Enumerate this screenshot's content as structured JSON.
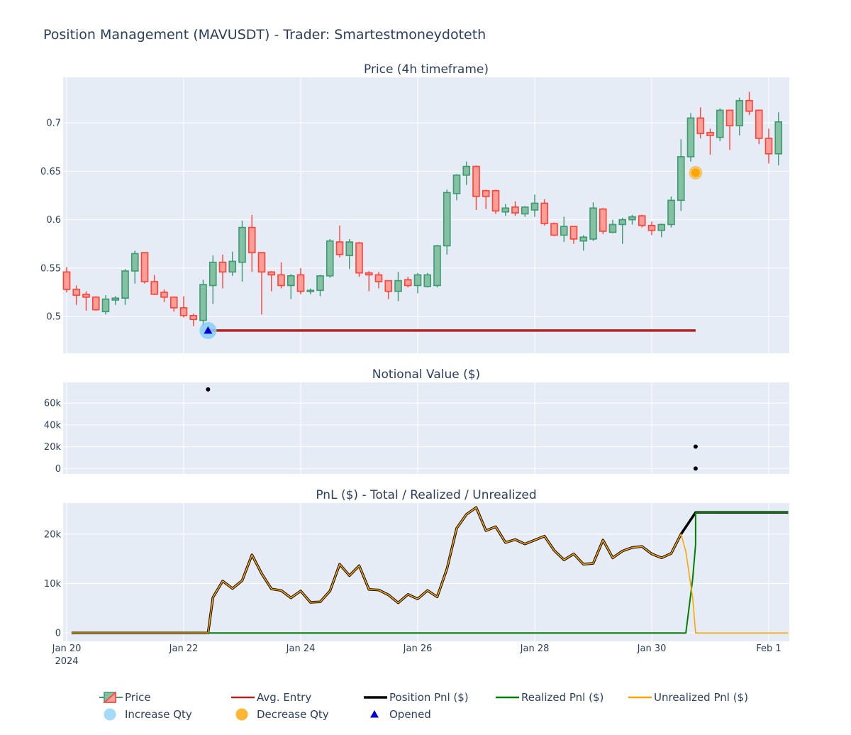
{
  "title": "Position Management (MAVUSDT) - Trader: Smartestmoneydoteth",
  "colors": {
    "plot_bg": "#e5ecf6",
    "increasing": "#3d9970",
    "increasing_fill": "#84c1a3",
    "decreasing": "#ff4136",
    "decreasing_fill": "#ff9d97",
    "avg_entry": "#b22222",
    "position_pnl": "#000000",
    "realized_pnl": "#008000",
    "unrealized_pnl": "#ffa500",
    "increase_marker": "#87cefa",
    "decrease_marker": "#ffa500",
    "opened_marker": "#0000cd"
  },
  "x_axis": {
    "ticks": [
      {
        "label": "Jan 20",
        "sublabel": "2024",
        "x": 0
      },
      {
        "label": "Jan 22",
        "x": 12
      },
      {
        "label": "Jan 24",
        "x": 24
      },
      {
        "label": "Jan 26",
        "x": 36
      },
      {
        "label": "Jan 28",
        "x": 48
      },
      {
        "label": "Jan 30",
        "x": 60
      },
      {
        "label": "Feb 1",
        "x": 72
      }
    ]
  },
  "chart_data": [
    {
      "type": "candlestick",
      "title": "Price (4h timeframe)",
      "x_unit": "4h candles since Jan 20 00:00",
      "yticks": [
        "0.5",
        "0.55",
        "0.6",
        "0.65",
        "0.7"
      ],
      "ylim": [
        0.462,
        0.747
      ],
      "candles": [
        [
          0.546,
          0.551,
          0.525,
          0.528
        ],
        [
          0.528,
          0.532,
          0.512,
          0.522
        ],
        [
          0.523,
          0.526,
          0.506,
          0.52
        ],
        [
          0.52,
          0.521,
          0.506,
          0.507
        ],
        [
          0.505,
          0.522,
          0.502,
          0.518
        ],
        [
          0.517,
          0.521,
          0.512,
          0.519
        ],
        [
          0.519,
          0.549,
          0.512,
          0.547
        ],
        [
          0.547,
          0.568,
          0.534,
          0.565
        ],
        [
          0.566,
          0.566,
          0.534,
          0.536
        ],
        [
          0.536,
          0.543,
          0.522,
          0.523
        ],
        [
          0.525,
          0.528,
          0.515,
          0.52
        ],
        [
          0.52,
          0.52,
          0.505,
          0.509
        ],
        [
          0.509,
          0.521,
          0.499,
          0.501
        ],
        [
          0.501,
          0.503,
          0.49,
          0.497
        ],
        [
          0.496,
          0.538,
          0.49,
          0.533
        ],
        [
          0.532,
          0.563,
          0.513,
          0.556
        ],
        [
          0.556,
          0.564,
          0.529,
          0.546
        ],
        [
          0.546,
          0.567,
          0.542,
          0.557
        ],
        [
          0.556,
          0.599,
          0.536,
          0.592
        ],
        [
          0.592,
          0.605,
          0.546,
          0.566
        ],
        [
          0.566,
          0.566,
          0.502,
          0.546
        ],
        [
          0.546,
          0.547,
          0.526,
          0.543
        ],
        [
          0.543,
          0.556,
          0.529,
          0.532
        ],
        [
          0.532,
          0.544,
          0.518,
          0.542
        ],
        [
          0.543,
          0.55,
          0.523,
          0.526
        ],
        [
          0.526,
          0.529,
          0.523,
          0.527
        ],
        [
          0.527,
          0.543,
          0.521,
          0.542
        ],
        [
          0.542,
          0.58,
          0.54,
          0.578
        ],
        [
          0.577,
          0.594,
          0.561,
          0.564
        ],
        [
          0.563,
          0.58,
          0.549,
          0.577
        ],
        [
          0.576,
          0.577,
          0.541,
          0.545
        ],
        [
          0.545,
          0.547,
          0.526,
          0.543
        ],
        [
          0.543,
          0.546,
          0.529,
          0.536
        ],
        [
          0.537,
          0.537,
          0.518,
          0.526
        ],
        [
          0.526,
          0.546,
          0.516,
          0.537
        ],
        [
          0.538,
          0.541,
          0.53,
          0.532
        ],
        [
          0.532,
          0.545,
          0.524,
          0.543
        ],
        [
          0.531,
          0.545,
          0.53,
          0.543
        ],
        [
          0.532,
          0.574,
          0.53,
          0.573
        ],
        [
          0.573,
          0.631,
          0.564,
          0.628
        ],
        [
          0.627,
          0.647,
          0.62,
          0.646
        ],
        [
          0.646,
          0.66,
          0.636,
          0.655
        ],
        [
          0.655,
          0.656,
          0.61,
          0.624
        ],
        [
          0.63,
          0.631,
          0.611,
          0.624
        ],
        [
          0.63,
          0.631,
          0.606,
          0.609
        ],
        [
          0.608,
          0.616,
          0.604,
          0.612
        ],
        [
          0.613,
          0.619,
          0.604,
          0.607
        ],
        [
          0.606,
          0.614,
          0.603,
          0.613
        ],
        [
          0.61,
          0.626,
          0.603,
          0.617
        ],
        [
          0.617,
          0.621,
          0.594,
          0.596
        ],
        [
          0.596,
          0.597,
          0.583,
          0.584
        ],
        [
          0.584,
          0.603,
          0.577,
          0.593
        ],
        [
          0.593,
          0.593,
          0.575,
          0.58
        ],
        [
          0.578,
          0.584,
          0.568,
          0.582
        ],
        [
          0.58,
          0.618,
          0.578,
          0.612
        ],
        [
          0.611,
          0.612,
          0.585,
          0.588
        ],
        [
          0.587,
          0.6,
          0.586,
          0.595
        ],
        [
          0.595,
          0.602,
          0.575,
          0.6
        ],
        [
          0.6,
          0.605,
          0.595,
          0.603
        ],
        [
          0.604,
          0.605,
          0.592,
          0.594
        ],
        [
          0.594,
          0.598,
          0.584,
          0.589
        ],
        [
          0.589,
          0.596,
          0.582,
          0.595
        ],
        [
          0.595,
          0.624,
          0.592,
          0.62
        ],
        [
          0.62,
          0.683,
          0.609,
          0.665
        ],
        [
          0.665,
          0.71,
          0.66,
          0.705
        ],
        [
          0.705,
          0.716,
          0.684,
          0.689
        ],
        [
          0.69,
          0.694,
          0.667,
          0.687
        ],
        [
          0.685,
          0.715,
          0.681,
          0.713
        ],
        [
          0.713,
          0.713,
          0.672,
          0.697
        ],
        [
          0.697,
          0.726,
          0.687,
          0.723
        ],
        [
          0.723,
          0.732,
          0.708,
          0.712
        ],
        [
          0.713,
          0.713,
          0.678,
          0.684
        ],
        [
          0.684,
          0.694,
          0.658,
          0.668
        ],
        [
          0.668,
          0.711,
          0.656,
          0.701
        ]
      ],
      "avg_entry": {
        "name": "Avg. Entry",
        "x_start": 14.5,
        "x_end": 64.5,
        "y": 0.4855
      },
      "markers": [
        {
          "name": "Increase Qty",
          "x": 14.5,
          "y": 0.4855
        },
        {
          "name": "Decrease Qty",
          "x": 64.5,
          "y": 0.6485
        },
        {
          "name": "Opened",
          "x": 14.5,
          "y": 0.4855
        }
      ]
    },
    {
      "type": "scatter",
      "title": "Notional Value ($)",
      "yticks": [
        "0",
        "20k",
        "40k",
        "60k"
      ],
      "ylim": [
        -5000,
        79000
      ],
      "points": [
        {
          "x": 14.5,
          "y": 72600
        },
        {
          "x": 64.5,
          "y": 20100
        },
        {
          "x": 64.5,
          "y": 0
        }
      ]
    },
    {
      "type": "line",
      "title": "PnL ($) - Total / Realized / Unrealized",
      "yticks": [
        "0",
        "10k",
        "20k"
      ],
      "ylim": [
        -1700,
        26300
      ],
      "series": [
        {
          "name": "Position Pnl ($)",
          "color_key": "position_pnl",
          "width": 3.5,
          "points": [
            [
              0.5,
              0
            ],
            [
              14.5,
              0
            ],
            [
              15,
              7200
            ],
            [
              16,
              10500
            ],
            [
              17,
              9000
            ],
            [
              18,
              10600
            ],
            [
              19,
              15800
            ],
            [
              20,
              12000
            ],
            [
              21,
              8900
            ],
            [
              22,
              8600
            ],
            [
              23,
              7100
            ],
            [
              24,
              8500
            ],
            [
              25,
              6200
            ],
            [
              26,
              6300
            ],
            [
              27,
              8500
            ],
            [
              28,
              13900
            ],
            [
              29,
              11600
            ],
            [
              30,
              13600
            ],
            [
              31,
              8800
            ],
            [
              32,
              8700
            ],
            [
              33,
              7700
            ],
            [
              34,
              6100
            ],
            [
              35,
              7800
            ],
            [
              36,
              6900
            ],
            [
              37,
              8600
            ],
            [
              38,
              7300
            ],
            [
              39,
              13000
            ],
            [
              40,
              21200
            ],
            [
              41,
              24000
            ],
            [
              42,
              25400
            ],
            [
              43,
              20700
            ],
            [
              44,
              21500
            ],
            [
              45,
              18300
            ],
            [
              46,
              18900
            ],
            [
              47,
              18000
            ],
            [
              48,
              18800
            ],
            [
              49,
              19600
            ],
            [
              50,
              16700
            ],
            [
              51,
              14800
            ],
            [
              52,
              16000
            ],
            [
              53,
              13900
            ],
            [
              54,
              14100
            ],
            [
              55,
              18800
            ],
            [
              56,
              15200
            ],
            [
              57,
              16600
            ],
            [
              58,
              17300
            ],
            [
              59,
              17500
            ],
            [
              60,
              16000
            ],
            [
              61,
              15200
            ],
            [
              62,
              16100
            ],
            [
              63,
              20000
            ],
            [
              64.5,
              24400
            ],
            [
              74,
              24400
            ]
          ]
        },
        {
          "name": "Realized Pnl ($)",
          "color_key": "realized_pnl",
          "width": 2,
          "points": [
            [
              0.5,
              0
            ],
            [
              63.5,
              0
            ],
            [
              64.2,
              11000
            ],
            [
              64.5,
              18000
            ],
            [
              64.5,
              24400
            ],
            [
              74,
              24400
            ]
          ]
        },
        {
          "name": "Unrealized Pnl ($)",
          "color_key": "unrealized_pnl",
          "width": 1.6,
          "points": [
            [
              0.5,
              0
            ],
            [
              14.5,
              0
            ],
            [
              15,
              7200
            ],
            [
              16,
              10500
            ],
            [
              17,
              9000
            ],
            [
              18,
              10600
            ],
            [
              19,
              15800
            ],
            [
              20,
              12000
            ],
            [
              21,
              8900
            ],
            [
              22,
              8600
            ],
            [
              23,
              7100
            ],
            [
              24,
              8500
            ],
            [
              25,
              6200
            ],
            [
              26,
              6300
            ],
            [
              27,
              8500
            ],
            [
              28,
              13900
            ],
            [
              29,
              11600
            ],
            [
              30,
              13600
            ],
            [
              31,
              8800
            ],
            [
              32,
              8700
            ],
            [
              33,
              7700
            ],
            [
              34,
              6100
            ],
            [
              35,
              7800
            ],
            [
              36,
              6900
            ],
            [
              37,
              8600
            ],
            [
              38,
              7300
            ],
            [
              39,
              13000
            ],
            [
              40,
              21200
            ],
            [
              41,
              24000
            ],
            [
              42,
              25400
            ],
            [
              43,
              20700
            ],
            [
              44,
              21500
            ],
            [
              45,
              18300
            ],
            [
              46,
              18900
            ],
            [
              47,
              18000
            ],
            [
              48,
              18800
            ],
            [
              49,
              19600
            ],
            [
              50,
              16700
            ],
            [
              51,
              14800
            ],
            [
              52,
              16000
            ],
            [
              53,
              13900
            ],
            [
              54,
              14100
            ],
            [
              55,
              18800
            ],
            [
              56,
              15200
            ],
            [
              57,
              16600
            ],
            [
              58,
              17300
            ],
            [
              59,
              17500
            ],
            [
              60,
              16000
            ],
            [
              61,
              15200
            ],
            [
              62,
              16100
            ],
            [
              63,
              20000
            ],
            [
              63.5,
              16500
            ],
            [
              64.2,
              7000
            ],
            [
              64.5,
              0
            ],
            [
              74,
              0
            ]
          ]
        }
      ]
    }
  ],
  "legend": {
    "row1": [
      {
        "label": "Price",
        "kind": "candle"
      },
      {
        "label": "Avg. Entry",
        "kind": "line",
        "color_key": "avg_entry"
      },
      {
        "label": "Position Pnl ($)",
        "kind": "line",
        "color_key": "position_pnl"
      },
      {
        "label": "Realized Pnl ($)",
        "kind": "line",
        "color_key": "realized_pnl"
      },
      {
        "label": "Unrealized Pnl ($)",
        "kind": "line",
        "color_key": "unrealized_pnl"
      }
    ],
    "row2": [
      {
        "label": "Increase Qty",
        "kind": "circle",
        "color_key": "increase_marker"
      },
      {
        "label": "Decrease Qty",
        "kind": "circle",
        "color_key": "decrease_marker"
      },
      {
        "label": "Opened",
        "kind": "triangle",
        "color_key": "opened_marker"
      }
    ]
  }
}
